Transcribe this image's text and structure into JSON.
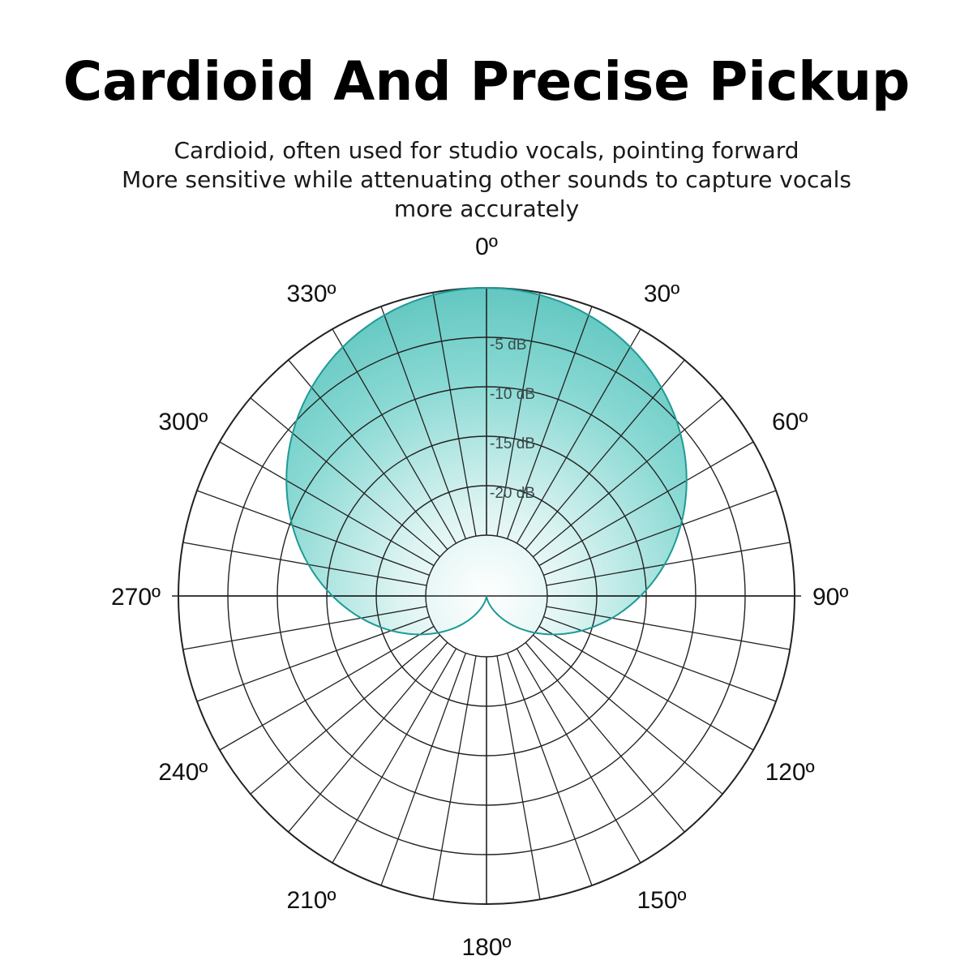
{
  "title": "Cardioid And Precise Pickup",
  "subtitle_lines": [
    "Cardioid, often used for studio vocals, pointing forward",
    "More sensitive while attenuating other sounds to capture vocals",
    "more accurately"
  ],
  "chart_data": {
    "type": "polar",
    "pattern": "cardioid",
    "angle_labels": [
      "0º",
      "30º",
      "60º",
      "90º",
      "120º",
      "150º",
      "180º",
      "210º",
      "240º",
      "270º",
      "300º",
      "330º"
    ],
    "radial_labels": [
      "-5 dB",
      "-10 dB",
      "-15 dB",
      "-20 dB"
    ],
    "radial_values_db": [
      -5,
      -10,
      -15,
      -20
    ],
    "radial_range_db": [
      -25,
      0
    ],
    "angle_step_deg": 10,
    "grid": true,
    "colors": {
      "fill_outer": "#6fcfc9",
      "fill_inner": "#ffffff",
      "outline": "#1f9a96",
      "grid": "#222222"
    }
  }
}
